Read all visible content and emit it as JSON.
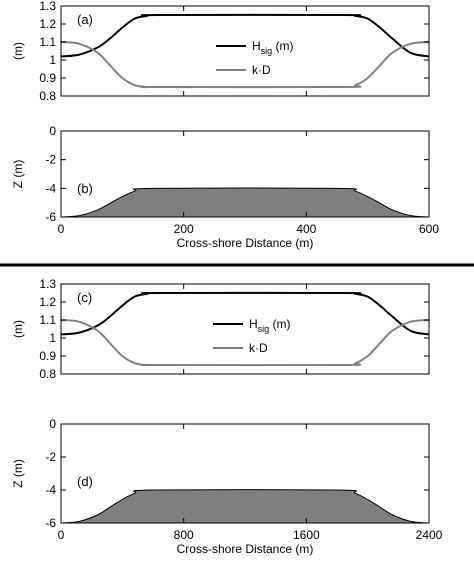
{
  "figure": {
    "separator": true,
    "colors": {
      "hsig": "#000000",
      "kd": "#808080",
      "bathymetry_fill": "#7f7f7f",
      "bathymetry_stroke": "#000000"
    }
  },
  "chart_data": [
    {
      "type": "line",
      "panel_label": "(a)",
      "ylabel": "(m)",
      "xlim": [
        0,
        600
      ],
      "ylim": [
        0.8,
        1.3
      ],
      "yticks": [
        0.8,
        0.9,
        1,
        1.1,
        1.2,
        1.3
      ],
      "ytick_labels": [
        "0.8",
        "0.9",
        "1",
        "1.1",
        "1.2",
        "1.3"
      ],
      "xticks": [
        0,
        200,
        400,
        600
      ],
      "x_tick_labels_shown": false,
      "grid": false,
      "legend": {
        "placement": "right",
        "entries": [
          {
            "label": "H",
            "subscript": "sig",
            "suffix": " (m)",
            "series": "hsig"
          },
          {
            "label": "k·D",
            "subscript": "",
            "suffix": "",
            "series": "kd"
          }
        ]
      },
      "series": [
        {
          "key": "hsig",
          "name": "Hsig (m)",
          "color": "#000000",
          "x": [
            0,
            30,
            60,
            80,
            100,
            120,
            140,
            160,
            460,
            480,
            500,
            520,
            540,
            570,
            600
          ],
          "y": [
            1.02,
            1.03,
            1.07,
            1.12,
            1.18,
            1.23,
            1.245,
            1.25,
            1.25,
            1.245,
            1.23,
            1.18,
            1.12,
            1.04,
            1.02
          ]
        },
        {
          "key": "kd",
          "name": "k·D",
          "color": "#808080",
          "x": [
            0,
            30,
            60,
            80,
            100,
            120,
            140,
            160,
            460,
            480,
            500,
            520,
            540,
            570,
            600
          ],
          "y": [
            1.1,
            1.09,
            1.04,
            0.97,
            0.9,
            0.86,
            0.85,
            0.85,
            0.85,
            0.86,
            0.9,
            0.97,
            1.04,
            1.09,
            1.1
          ]
        }
      ]
    },
    {
      "type": "area",
      "panel_label": "(b)",
      "ylabel": "Z (m)",
      "xlabel": "Cross-shore Distance (m)",
      "xlim": [
        0,
        600
      ],
      "ylim": [
        -6,
        0
      ],
      "yticks": [
        0,
        -2,
        -4,
        -6
      ],
      "ytick_labels": [
        "0",
        "-2",
        "-4",
        "-6"
      ],
      "xticks": [
        0,
        200,
        400,
        600
      ],
      "xtick_labels": [
        "0",
        "200",
        "400",
        "600"
      ],
      "x_tick_labels_shown": true,
      "grid": false,
      "series": [
        {
          "key": "z",
          "name": "",
          "color": "#7f7f7f",
          "x": [
            0,
            30,
            60,
            90,
            120,
            150,
            450,
            480,
            510,
            540,
            570,
            600
          ],
          "y": [
            -6,
            -5.9,
            -5.5,
            -4.8,
            -4.2,
            -4.0,
            -4.0,
            -4.2,
            -4.8,
            -5.5,
            -5.9,
            -6
          ]
        }
      ]
    },
    {
      "type": "line",
      "panel_label": "(c)",
      "ylabel": "(m)",
      "xlim": [
        0,
        2400
      ],
      "ylim": [
        0.8,
        1.3
      ],
      "yticks": [
        0.8,
        0.9,
        1,
        1.1,
        1.2,
        1.3
      ],
      "ytick_labels": [
        "0.8",
        "0.9",
        "1",
        "1.1",
        "1.2",
        "1.3"
      ],
      "xticks": [
        0,
        800,
        1600,
        2400
      ],
      "x_tick_labels_shown": false,
      "grid": false,
      "legend": {
        "placement": "right",
        "entries": [
          {
            "label": "H",
            "subscript": "sig",
            "suffix": " (m)",
            "series": "hsig"
          },
          {
            "label": "k·D",
            "subscript": "",
            "suffix": "",
            "series": "kd"
          }
        ]
      },
      "series": [
        {
          "key": "hsig",
          "name": "Hsig (m)",
          "color": "#000000",
          "x": [
            0,
            120,
            240,
            320,
            400,
            480,
            560,
            640,
            1840,
            1920,
            2000,
            2080,
            2160,
            2280,
            2400
          ],
          "y": [
            1.02,
            1.03,
            1.07,
            1.12,
            1.18,
            1.23,
            1.245,
            1.25,
            1.25,
            1.245,
            1.23,
            1.18,
            1.12,
            1.04,
            1.02
          ]
        },
        {
          "key": "kd",
          "name": "k·D",
          "color": "#808080",
          "x": [
            0,
            120,
            240,
            320,
            400,
            480,
            560,
            640,
            1840,
            1920,
            2000,
            2080,
            2160,
            2280,
            2400
          ],
          "y": [
            1.1,
            1.09,
            1.04,
            0.97,
            0.9,
            0.86,
            0.85,
            0.85,
            0.85,
            0.86,
            0.9,
            0.97,
            1.04,
            1.09,
            1.1
          ]
        }
      ]
    },
    {
      "type": "area",
      "panel_label": "(d)",
      "ylabel": "Z (m)",
      "xlabel": "Cross-shore Distance (m)",
      "xlim": [
        0,
        2400
      ],
      "ylim": [
        -6,
        0
      ],
      "yticks": [
        0,
        -2,
        -4,
        -6
      ],
      "ytick_labels": [
        "0",
        "-2",
        "-4",
        "-6"
      ],
      "xticks": [
        0,
        800,
        1600,
        2400
      ],
      "xtick_labels": [
        "0",
        "800",
        "1600",
        "2400"
      ],
      "x_tick_labels_shown": true,
      "grid": false,
      "series": [
        {
          "key": "z",
          "name": "",
          "color": "#7f7f7f",
          "x": [
            0,
            120,
            240,
            360,
            480,
            600,
            1800,
            1920,
            2040,
            2160,
            2280,
            2400
          ],
          "y": [
            -6,
            -5.9,
            -5.5,
            -4.8,
            -4.2,
            -4.0,
            -4.0,
            -4.2,
            -4.8,
            -5.5,
            -5.9,
            -6
          ]
        }
      ]
    }
  ]
}
